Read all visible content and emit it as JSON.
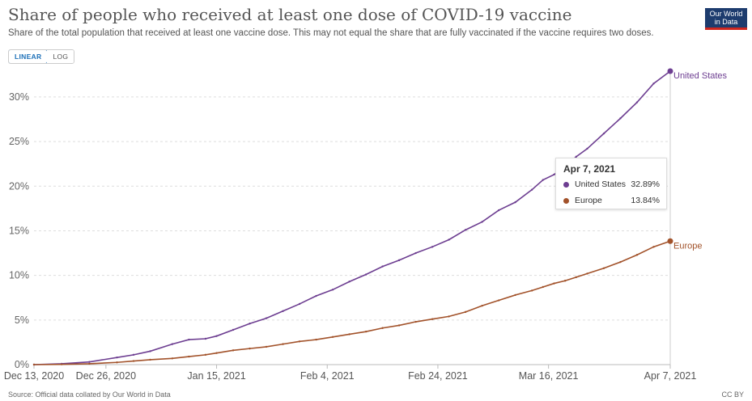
{
  "header": {
    "title": "Share of people who received at least one dose of COVID-19 vaccine",
    "subtitle": "Share of the total population that received at least one vaccine dose. This may not equal the share that are fully vaccinated if the vaccine requires two doses.",
    "logo_line1": "Our World",
    "logo_line2": "in Data"
  },
  "controls": {
    "linear_label": "LINEAR",
    "log_label": "LOG",
    "active": "linear"
  },
  "tooltip": {
    "date": "Apr 7, 2021",
    "rows": [
      {
        "name": "United States",
        "value": "32.89%"
      },
      {
        "name": "Europe",
        "value": "13.84%"
      }
    ]
  },
  "footer": {
    "source": "Source: Official data collated by Our World in Data",
    "license": "CC BY"
  },
  "colors": {
    "us": "#6d3e91",
    "europe": "#a2522a",
    "grid": "#dddddd",
    "axis": "#bbbbbb"
  },
  "chart_data": {
    "type": "line",
    "title": "Share of people who received at least one dose of COVID-19 vaccine",
    "xlabel": "",
    "ylabel": "",
    "x_unit": "days since Dec 13, 2020",
    "x_range": [
      0,
      115
    ],
    "ylim": [
      0,
      32.89
    ],
    "y_ticks": [
      0,
      5,
      10,
      15,
      20,
      25,
      30
    ],
    "y_tick_labels": [
      "0%",
      "5%",
      "10%",
      "15%",
      "20%",
      "25%",
      "30%"
    ],
    "x_ticks": [
      0,
      13,
      33,
      53,
      73,
      93,
      115
    ],
    "x_tick_labels": [
      "Dec 13, 2020",
      "Dec 26, 2020",
      "Jan 15, 2021",
      "Feb 4, 2021",
      "Feb 24, 2021",
      "Mar 16, 2021",
      "Apr 7, 2021"
    ],
    "grid": true,
    "series": [
      {
        "name": "United States",
        "x": [
          0,
          5,
          10,
          15,
          18,
          21,
          25,
          28,
          31,
          33,
          36,
          39,
          42,
          45,
          48,
          51,
          54,
          57,
          60,
          63,
          66,
          69,
          72,
          75,
          78,
          81,
          84,
          87,
          90,
          92,
          94,
          96,
          98,
          100,
          103,
          106,
          109,
          112,
          115
        ],
        "values": [
          0,
          0.1,
          0.3,
          0.8,
          1.1,
          1.5,
          2.3,
          2.8,
          2.9,
          3.2,
          3.9,
          4.6,
          5.2,
          6.0,
          6.8,
          7.7,
          8.4,
          9.3,
          10.1,
          11.0,
          11.7,
          12.5,
          13.2,
          14.0,
          15.1,
          16.0,
          17.3,
          18.2,
          19.6,
          20.7,
          21.3,
          22.2,
          23.3,
          24.2,
          25.9,
          27.6,
          29.4,
          31.5,
          32.89
        ]
      },
      {
        "name": "Europe",
        "x": [
          0,
          5,
          10,
          15,
          18,
          21,
          25,
          28,
          31,
          33,
          36,
          39,
          42,
          45,
          48,
          51,
          54,
          57,
          60,
          63,
          66,
          69,
          72,
          75,
          78,
          81,
          84,
          87,
          90,
          92,
          94,
          96,
          98,
          100,
          103,
          106,
          109,
          112,
          115
        ],
        "values": [
          0,
          0.03,
          0.1,
          0.25,
          0.4,
          0.55,
          0.7,
          0.9,
          1.1,
          1.3,
          1.6,
          1.8,
          2.0,
          2.3,
          2.6,
          2.8,
          3.1,
          3.4,
          3.7,
          4.1,
          4.4,
          4.8,
          5.1,
          5.4,
          5.9,
          6.6,
          7.2,
          7.8,
          8.3,
          8.7,
          9.1,
          9.4,
          9.8,
          10.2,
          10.8,
          11.5,
          12.3,
          13.2,
          13.84
        ]
      }
    ]
  }
}
